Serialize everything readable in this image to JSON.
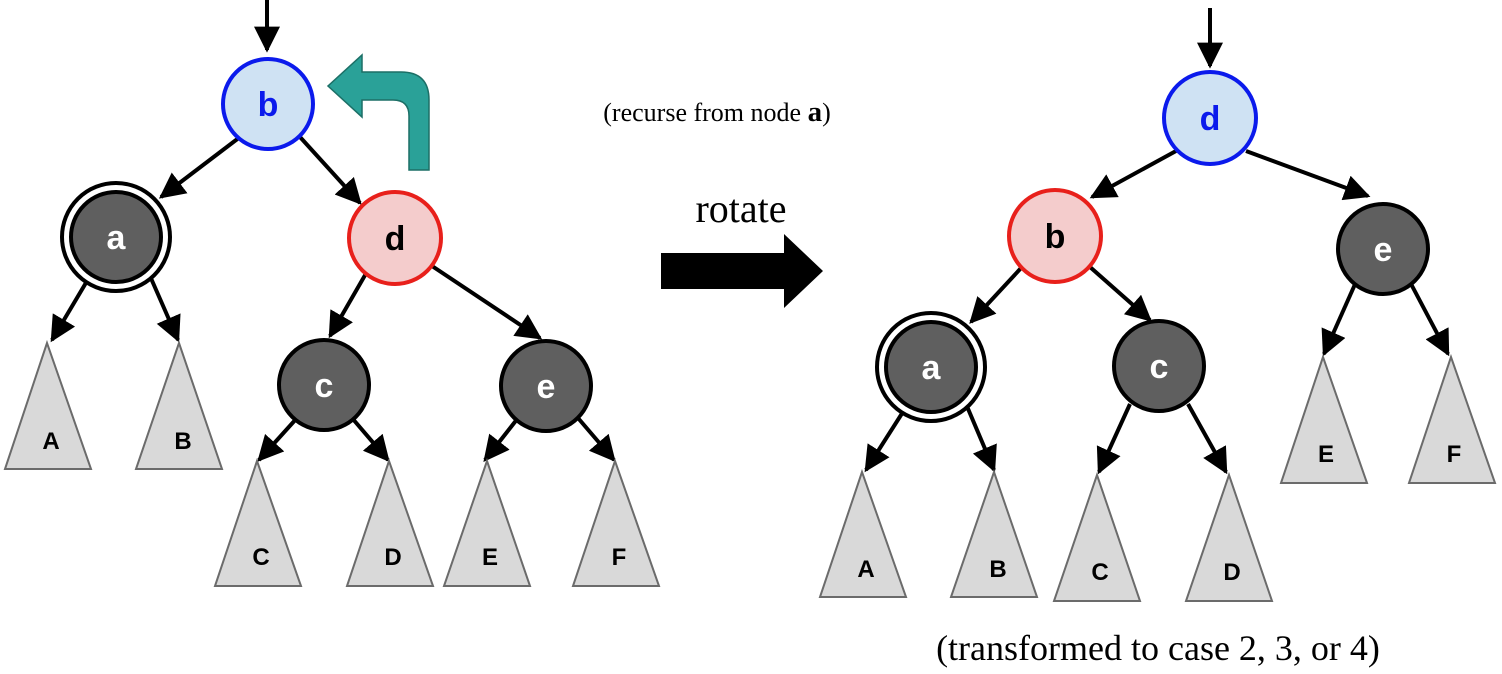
{
  "colors": {
    "black_node_fill": "#5f5f5f",
    "red_node_fill": "#f4cccc",
    "red_node_stroke": "#e8201b",
    "blue_node_fill": "#cfe2f3",
    "blue_node_stroke": "#0b1aec",
    "leaf_fill": "#d9d9d9",
    "leaf_stroke": "#6b6b6b",
    "recurse_arrow_fill": "#2aa198",
    "edge": "#000000"
  },
  "left_tree": {
    "nodes": {
      "b": {
        "label": "b",
        "color": "blue"
      },
      "a": {
        "label": "a",
        "color": "black",
        "double_black": true
      },
      "d": {
        "label": "d",
        "color": "red"
      },
      "c": {
        "label": "c",
        "color": "black"
      },
      "e": {
        "label": "e",
        "color": "black"
      }
    },
    "leaves": [
      "A",
      "B",
      "C",
      "D",
      "E",
      "F"
    ]
  },
  "right_tree": {
    "nodes": {
      "d": {
        "label": "d",
        "color": "blue"
      },
      "b": {
        "label": "b",
        "color": "red"
      },
      "e": {
        "label": "e",
        "color": "black"
      },
      "a": {
        "label": "a",
        "color": "black",
        "double_black": true
      },
      "c": {
        "label": "c",
        "color": "black"
      }
    },
    "leaves": [
      "A",
      "B",
      "C",
      "D",
      "E",
      "F"
    ]
  },
  "annotations": {
    "recurse_prefix": "(recurse from node ",
    "recurse_node": "a",
    "recurse_suffix": ")",
    "rotate_label": "rotate",
    "transformed_caption": "(transformed to case 2, 3, or 4)"
  }
}
